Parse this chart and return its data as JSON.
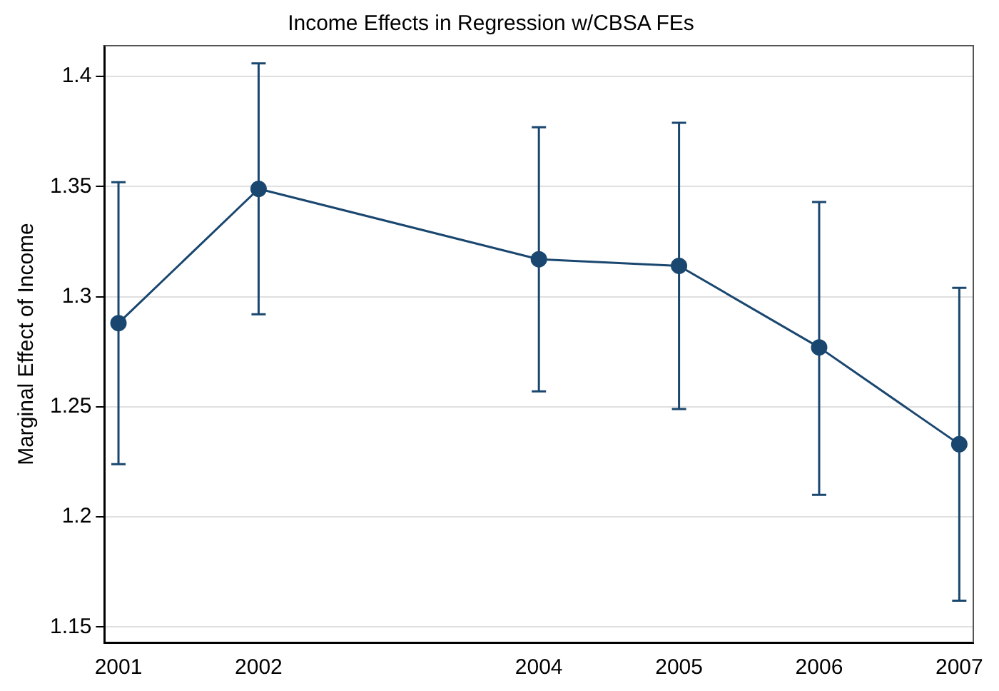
{
  "chart_data": {
    "type": "line",
    "title": "Income Effects in Regression w/CBSA FEs",
    "ylabel": "Marginal Effect of Income",
    "x": [
      2001,
      2002,
      2004,
      2005,
      2006,
      2007
    ],
    "series": [
      {
        "color": "#1a476f",
        "values": [
          1.288,
          1.349,
          1.317,
          1.314,
          1.277,
          1.233
        ],
        "errors": [
          [
            1.224,
            1.352
          ],
          [
            1.292,
            1.406
          ],
          [
            1.257,
            1.377
          ],
          [
            1.249,
            1.379
          ],
          [
            1.21,
            1.343
          ],
          [
            1.162,
            1.304
          ]
        ]
      }
    ],
    "xlim": [
      2000.9,
      2007.1
    ],
    "xticks": [
      2001,
      2002,
      2004,
      2005,
      2006,
      2007
    ],
    "ylim": [
      1.143,
      1.414
    ],
    "yticks": [
      1.15,
      1.2,
      1.25,
      1.3,
      1.35,
      1.4
    ],
    "grid": "y",
    "marker": "circle",
    "line_style": "solid",
    "legend": false
  }
}
